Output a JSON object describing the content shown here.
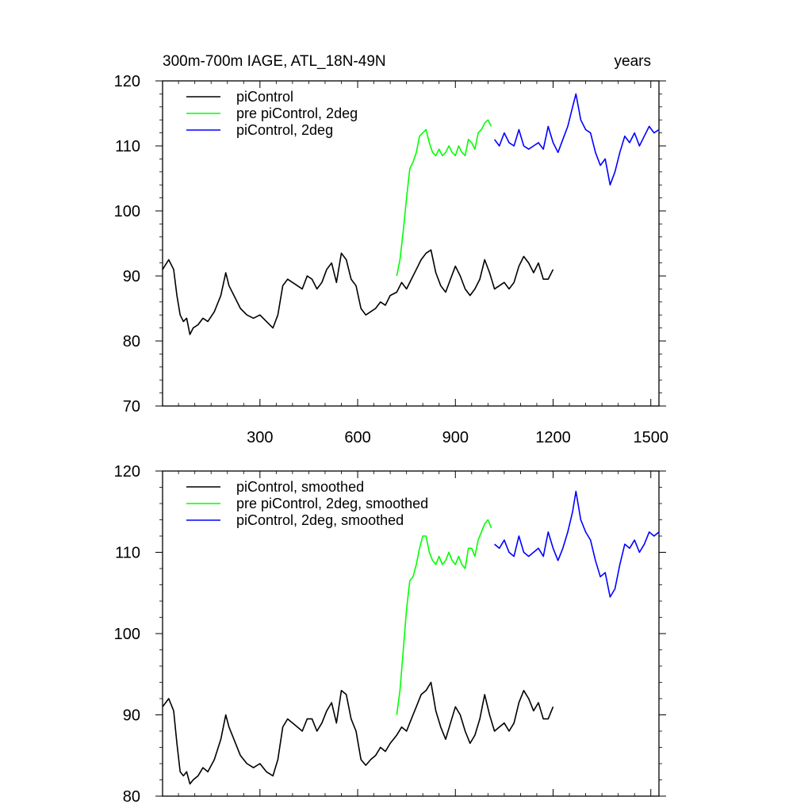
{
  "chart_data": [
    {
      "type": "line",
      "title_left": "300m-700m IAGE, ATL_18N-49N",
      "title_right": "years",
      "xlim": [
        1,
        1525
      ],
      "ylim": [
        70,
        120
      ],
      "xticks": [
        300,
        600,
        900,
        1200,
        1500
      ],
      "yticks": [
        70,
        80,
        90,
        100,
        110,
        120
      ],
      "xtick_labels": [
        "300",
        "600",
        "900",
        "1200",
        "1500"
      ],
      "ytick_labels": [
        "70",
        "80",
        "90",
        "100",
        "110",
        "120"
      ],
      "legend_placement": "top-left",
      "series": [
        {
          "name": "piControl",
          "color": "#000000",
          "x": [
            1,
            20,
            35,
            45,
            55,
            65,
            75,
            85,
            95,
            110,
            125,
            140,
            160,
            180,
            195,
            205,
            220,
            240,
            260,
            280,
            300,
            320,
            340,
            355,
            370,
            385,
            400,
            415,
            430,
            445,
            460,
            475,
            490,
            505,
            520,
            535,
            550,
            565,
            580,
            595,
            610,
            625,
            640,
            655,
            670,
            685,
            700,
            720,
            735,
            750,
            765,
            780,
            795,
            810,
            825,
            840,
            855,
            870,
            885,
            900,
            915,
            930,
            945,
            960,
            975,
            990,
            1005,
            1020,
            1035,
            1050,
            1065,
            1080,
            1095,
            1110,
            1125,
            1140,
            1155,
            1170,
            1185,
            1200
          ],
          "values": [
            91,
            92.5,
            91,
            87,
            84,
            83,
            83.5,
            81,
            82,
            82.5,
            83.5,
            83,
            84.5,
            87,
            90.5,
            88.5,
            87,
            85,
            84,
            83.5,
            84,
            83,
            82,
            84,
            88.5,
            89.5,
            89,
            88.5,
            88,
            90,
            89.5,
            88,
            89,
            91,
            92,
            89,
            93.5,
            92.5,
            89.5,
            88.5,
            85,
            84,
            84.5,
            85,
            86,
            85.5,
            87,
            87.5,
            89,
            88,
            89.5,
            91,
            92.5,
            93.5,
            94,
            90.5,
            88.5,
            87.5,
            89.5,
            91.5,
            90,
            88,
            87,
            88,
            89.5,
            92.5,
            90.5,
            88,
            88.5,
            89,
            88,
            89,
            91.5,
            93,
            92,
            90.5,
            92,
            89.5,
            89.5,
            91
          ]
        },
        {
          "name": "pre piControl, 2deg",
          "color": "#00ff00",
          "x": [
            720,
            730,
            740,
            750,
            760,
            770,
            780,
            790,
            800,
            810,
            820,
            830,
            840,
            850,
            860,
            870,
            880,
            890,
            900,
            910,
            920,
            930,
            940,
            950,
            960,
            970,
            980,
            990,
            1000,
            1010
          ],
          "values": [
            90,
            92.5,
            97,
            102,
            106.5,
            107.5,
            109,
            111.5,
            112,
            112.5,
            110.5,
            109,
            108.5,
            109.5,
            108.5,
            109,
            110,
            109,
            108.5,
            110,
            109,
            108.5,
            111,
            110.5,
            109.5,
            112,
            112.5,
            113.5,
            114,
            113
          ]
        },
        {
          "name": "piControl, 2deg",
          "color": "#0000ff",
          "x": [
            1020,
            1035,
            1050,
            1065,
            1080,
            1095,
            1110,
            1125,
            1140,
            1155,
            1170,
            1185,
            1200,
            1215,
            1230,
            1245,
            1260,
            1270,
            1285,
            1300,
            1315,
            1330,
            1345,
            1360,
            1375,
            1390,
            1405,
            1420,
            1435,
            1450,
            1465,
            1480,
            1495,
            1510,
            1525
          ],
          "values": [
            111,
            110,
            112,
            110.5,
            110,
            112.5,
            110,
            109.5,
            110,
            110.5,
            109.5,
            113,
            110.5,
            109,
            111,
            113,
            116,
            118,
            114,
            112.5,
            112,
            109,
            107,
            108,
            104,
            106,
            109,
            111.5,
            110.5,
            112,
            110,
            111.5,
            113,
            112,
            112.5
          ]
        }
      ]
    },
    {
      "type": "line",
      "title_left": "",
      "title_right": "",
      "xlim": [
        1,
        1525
      ],
      "ylim": [
        80,
        120
      ],
      "xticks": [
        300,
        600,
        900,
        1200,
        1500
      ],
      "yticks": [
        80,
        90,
        100,
        110,
        120
      ],
      "xtick_labels": [],
      "ytick_labels": [
        "80",
        "90",
        "100",
        "110",
        "120"
      ],
      "legend_placement": "top-left",
      "series": [
        {
          "name": "piControl, smoothed",
          "color": "#000000",
          "x": [
            1,
            20,
            35,
            45,
            55,
            65,
            75,
            85,
            95,
            110,
            125,
            140,
            160,
            180,
            195,
            205,
            220,
            240,
            260,
            280,
            300,
            320,
            340,
            355,
            370,
            385,
            400,
            415,
            430,
            445,
            460,
            475,
            490,
            505,
            520,
            535,
            550,
            565,
            580,
            595,
            610,
            625,
            640,
            655,
            670,
            685,
            700,
            720,
            735,
            750,
            765,
            780,
            795,
            810,
            825,
            840,
            855,
            870,
            885,
            900,
            915,
            930,
            945,
            960,
            975,
            990,
            1005,
            1020,
            1035,
            1050,
            1065,
            1080,
            1095,
            1110,
            1125,
            1140,
            1155,
            1170,
            1185,
            1200
          ],
          "values": [
            91,
            92,
            90.5,
            86.5,
            83,
            82.5,
            83,
            81.5,
            82,
            82.5,
            83.5,
            83,
            84.5,
            87,
            90,
            88.5,
            87,
            85,
            84,
            83.5,
            84,
            83,
            82.5,
            84.5,
            88.5,
            89.5,
            89,
            88.5,
            88,
            89.5,
            89.5,
            88,
            89,
            90.5,
            91.5,
            89,
            93,
            92.5,
            89.5,
            88,
            84.5,
            83.8,
            84.5,
            85,
            86,
            85.5,
            86.5,
            87.5,
            88.5,
            88,
            89.5,
            91,
            92.5,
            93,
            94,
            90.5,
            88.5,
            87,
            89,
            91,
            90,
            88,
            86.5,
            87.5,
            89.5,
            92.5,
            90,
            88,
            88.5,
            89,
            88,
            89,
            91.5,
            93,
            92,
            90.5,
            91.5,
            89.5,
            89.5,
            91
          ]
        },
        {
          "name": "pre piControl, 2deg, smoothed",
          "color": "#00ff00",
          "x": [
            720,
            730,
            740,
            750,
            760,
            770,
            780,
            790,
            800,
            810,
            820,
            830,
            840,
            850,
            860,
            870,
            880,
            890,
            900,
            910,
            920,
            930,
            940,
            950,
            960,
            970,
            980,
            990,
            1000,
            1010
          ],
          "values": [
            90,
            93,
            98,
            103,
            106.5,
            107,
            108.5,
            110.5,
            112,
            112,
            110,
            109,
            108.5,
            109.5,
            108.5,
            109,
            110,
            109,
            108.5,
            109.5,
            108.5,
            108,
            110.5,
            110.5,
            109.5,
            111.5,
            112.5,
            113.5,
            114,
            113
          ]
        },
        {
          "name": "piControl, 2deg, smoothed",
          "color": "#0000ff",
          "x": [
            1020,
            1035,
            1050,
            1065,
            1080,
            1095,
            1110,
            1125,
            1140,
            1155,
            1170,
            1185,
            1200,
            1215,
            1230,
            1245,
            1260,
            1270,
            1285,
            1300,
            1315,
            1330,
            1345,
            1360,
            1375,
            1390,
            1405,
            1420,
            1435,
            1450,
            1465,
            1480,
            1495,
            1510,
            1525
          ],
          "values": [
            111,
            110.5,
            111.5,
            110,
            109.5,
            112,
            110,
            109.5,
            110,
            110.5,
            109.5,
            112.5,
            110.5,
            109,
            110.5,
            112.5,
            115,
            117.5,
            114,
            112.5,
            111.5,
            109,
            107,
            107.5,
            104.5,
            105.5,
            108.5,
            111,
            110.5,
            111.5,
            110,
            111,
            112.5,
            112,
            112.5
          ]
        }
      ]
    }
  ]
}
